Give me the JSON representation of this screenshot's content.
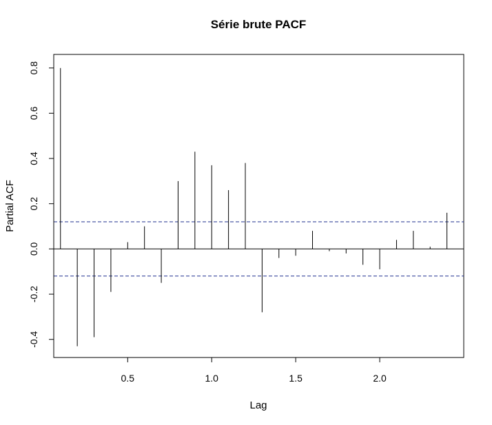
{
  "chart_data": {
    "type": "bar",
    "title": "Série brute PACF",
    "xlabel": "Lag",
    "ylabel": "Partial ACF",
    "xlim": [
      0.06,
      2.5
    ],
    "ylim": [
      -0.48,
      0.86
    ],
    "x_ticks": [
      0.5,
      1.0,
      1.5,
      2.0
    ],
    "x_tick_labels": [
      "0.5",
      "1.0",
      "1.5",
      "2.0"
    ],
    "y_ticks": [
      -0.4,
      -0.2,
      0.0,
      0.2,
      0.4,
      0.6,
      0.8
    ],
    "y_tick_labels": [
      "-0.4",
      "-0.2",
      "0.0",
      "0.2",
      "0.4",
      "0.6",
      "0.8"
    ],
    "confidence_bounds": [
      0.12,
      -0.12
    ],
    "grid": false,
    "lags": [
      0.1,
      0.2,
      0.3,
      0.4,
      0.5,
      0.6,
      0.7,
      0.8,
      0.9,
      1.0,
      1.1,
      1.2,
      1.3,
      1.4,
      1.5,
      1.6,
      1.7,
      1.8,
      1.9,
      2.0,
      2.1,
      2.2,
      2.3,
      2.4
    ],
    "values": [
      0.8,
      -0.43,
      -0.39,
      -0.19,
      0.03,
      0.1,
      -0.15,
      0.3,
      0.43,
      0.37,
      0.26,
      0.38,
      -0.28,
      -0.04,
      -0.03,
      0.08,
      -0.01,
      -0.02,
      -0.07,
      -0.09,
      0.04,
      0.08,
      0.01,
      0.16
    ]
  }
}
